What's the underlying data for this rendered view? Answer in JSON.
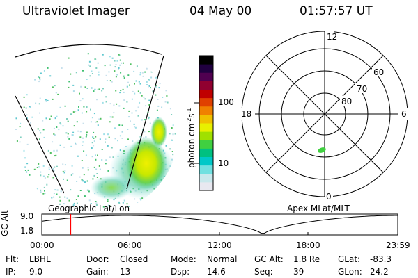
{
  "header": {
    "instrument": "Ultraviolet Imager",
    "date": "04 May 00",
    "time": "01:57:57 UT"
  },
  "colorbar": {
    "label": "photon cm-2s-1",
    "label_base": "photon cm",
    "label_exp1": "-2",
    "label_mid": "s",
    "label_exp2": "-1",
    "tick_high": "100",
    "tick_low": "10",
    "colors": [
      "#e8e8f0",
      "#c8e8ec",
      "#70e0e0",
      "#00c8c8",
      "#00c080",
      "#40d040",
      "#a0e000",
      "#e8f000",
      "#f0c000",
      "#f08000",
      "#e04000",
      "#c00000",
      "#900030",
      "#500050",
      "#200040",
      "#000000"
    ]
  },
  "left_panel": {
    "caption": "Geographic Lat/Lon"
  },
  "polar_panel": {
    "caption": "Apex MLat/MLT",
    "mlt_labels": {
      "top": "12",
      "left": "18",
      "right": "6",
      "bottom": "0"
    },
    "mlat_labels": [
      "60",
      "70",
      "80"
    ]
  },
  "altitude_plot": {
    "ylabel": "GC Alt",
    "ytick_top": "9.0",
    "ytick_bottom": "1.8",
    "xticks": [
      "00:00",
      "06:00",
      "12:00",
      "18:00",
      "23:59"
    ],
    "current_marker_color": "#ff0000"
  },
  "info": {
    "row1": [
      {
        "label": "Flt:",
        "value": "LBHL"
      },
      {
        "label": "Door:",
        "value": "Closed"
      },
      {
        "label": "Mode:",
        "value": "Normal"
      },
      {
        "label": "GC Alt:",
        "value": "1.8 Re"
      },
      {
        "label": "GLat:",
        "value": "-83.3"
      }
    ],
    "row2": [
      {
        "label": "IP:",
        "value": "9.0"
      },
      {
        "label": "Gain:",
        "value": "13"
      },
      {
        "label": "Dsp:",
        "value": "14.6"
      },
      {
        "label": "Seq:",
        "value": "39"
      },
      {
        "label": "GLon:",
        "value": "24.2"
      }
    ]
  }
}
